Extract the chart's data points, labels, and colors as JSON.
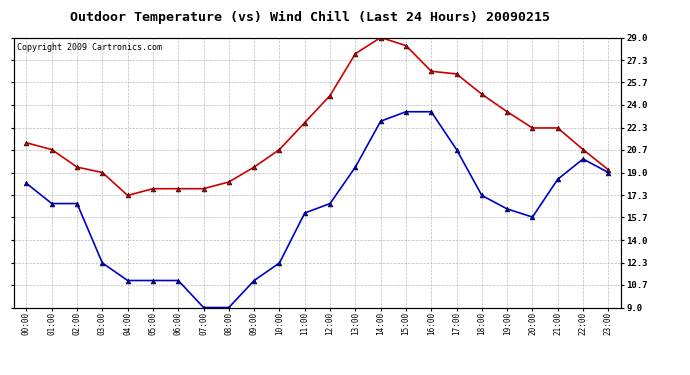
{
  "title": "Outdoor Temperature (vs) Wind Chill (Last 24 Hours) 20090215",
  "copyright_text": "Copyright 2009 Cartronics.com",
  "x_labels": [
    "00:00",
    "01:00",
    "02:00",
    "03:00",
    "04:00",
    "05:00",
    "06:00",
    "07:00",
    "08:00",
    "09:00",
    "10:00",
    "11:00",
    "12:00",
    "13:00",
    "14:00",
    "15:00",
    "16:00",
    "17:00",
    "18:00",
    "19:00",
    "20:00",
    "21:00",
    "22:00",
    "23:00"
  ],
  "temp_red": [
    21.2,
    20.7,
    19.4,
    19.0,
    17.3,
    17.8,
    17.8,
    17.8,
    18.3,
    19.4,
    20.7,
    22.7,
    24.7,
    27.8,
    29.0,
    28.4,
    26.5,
    26.3,
    24.8,
    23.5,
    22.3,
    22.3,
    20.7,
    19.2
  ],
  "wind_chill_blue": [
    18.2,
    16.7,
    16.7,
    12.3,
    11.0,
    11.0,
    11.0,
    9.0,
    9.0,
    11.0,
    12.3,
    16.0,
    16.7,
    19.4,
    22.8,
    23.5,
    23.5,
    20.7,
    17.3,
    16.3,
    15.7,
    18.5,
    20.0,
    19.0
  ],
  "ylim": [
    9.0,
    29.0
  ],
  "yticks": [
    9.0,
    10.7,
    12.3,
    14.0,
    15.7,
    17.3,
    19.0,
    20.7,
    22.3,
    24.0,
    25.7,
    27.3,
    29.0
  ],
  "red_color": "#cc0000",
  "blue_color": "#0000cc",
  "grid_color": "#bbbbbb",
  "bg_color": "#ffffff",
  "title_fontsize": 9.5,
  "copyright_fontsize": 6
}
